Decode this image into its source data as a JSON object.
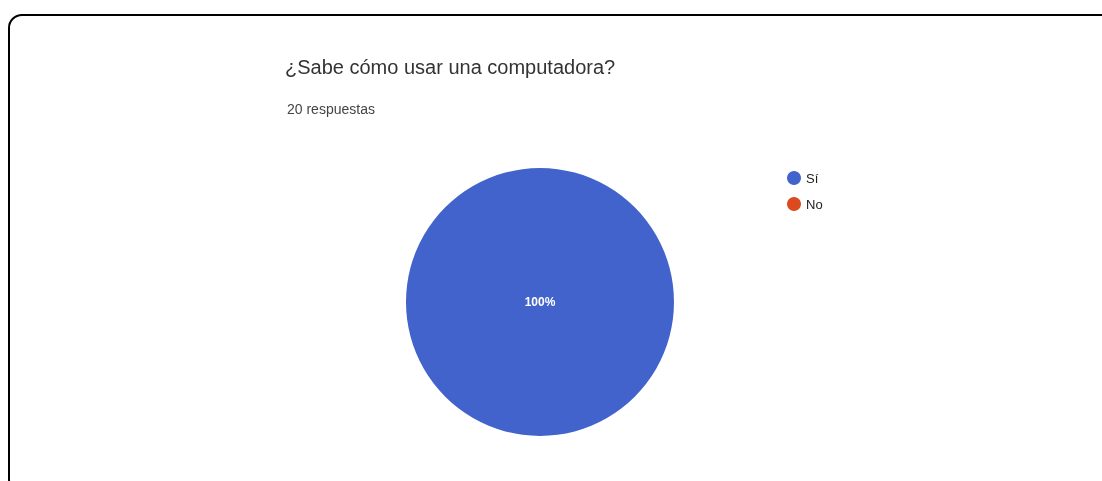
{
  "chart_data": {
    "type": "pie",
    "title": "¿Sabe cómo usar una computadora?",
    "subtitle": "20 respuestas",
    "categories": [
      "Sí",
      "No"
    ],
    "values": [
      100,
      0
    ],
    "colors": [
      "#4363cc",
      "#dc4a1f"
    ],
    "value_labels": [
      "100%",
      null
    ],
    "legend": "right"
  }
}
